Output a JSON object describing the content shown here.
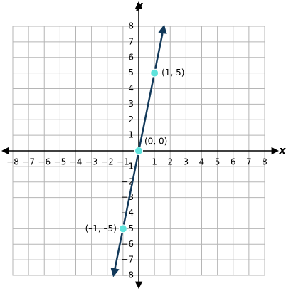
{
  "chart_data": {
    "type": "line",
    "x_label": "x",
    "y_label": "y",
    "xlim": [
      -8,
      8
    ],
    "ylim": [
      -8,
      8
    ],
    "xticks": [
      {
        "value": -8,
        "label": "−8"
      },
      {
        "value": -7,
        "label": "−7"
      },
      {
        "value": -6,
        "label": "−6"
      },
      {
        "value": -5,
        "label": "−5"
      },
      {
        "value": -4,
        "label": "−4"
      },
      {
        "value": -3,
        "label": "−3"
      },
      {
        "value": -2,
        "label": "−2"
      },
      {
        "value": -1,
        "label": "−1"
      },
      1,
      2,
      3,
      4,
      5,
      6,
      7,
      8
    ],
    "yticks": [
      {
        "value": -8,
        "label": "−8"
      },
      {
        "value": -7,
        "label": "−7"
      },
      {
        "value": -6,
        "label": "−6"
      },
      {
        "value": -5,
        "label": "−5"
      },
      {
        "value": -4,
        "label": "−4"
      },
      {
        "value": -3,
        "label": "−3"
      },
      {
        "value": -2,
        "label": "−2"
      },
      {
        "value": -1,
        "label": "−1"
      },
      1,
      2,
      3,
      4,
      5,
      6,
      7,
      8
    ],
    "grid": true,
    "lines": [
      {
        "x": [
          -1.6,
          1.6
        ],
        "y": [
          -8,
          8
        ],
        "color": "#12395a"
      }
    ],
    "points": {
      "x": [
        1,
        0,
        -1
      ],
      "y": [
        5,
        0,
        -5
      ],
      "labels": [
        "(1, 5)",
        "(0, 0)",
        "(–1, –5)"
      ],
      "color": "#5fe3dc"
    }
  }
}
